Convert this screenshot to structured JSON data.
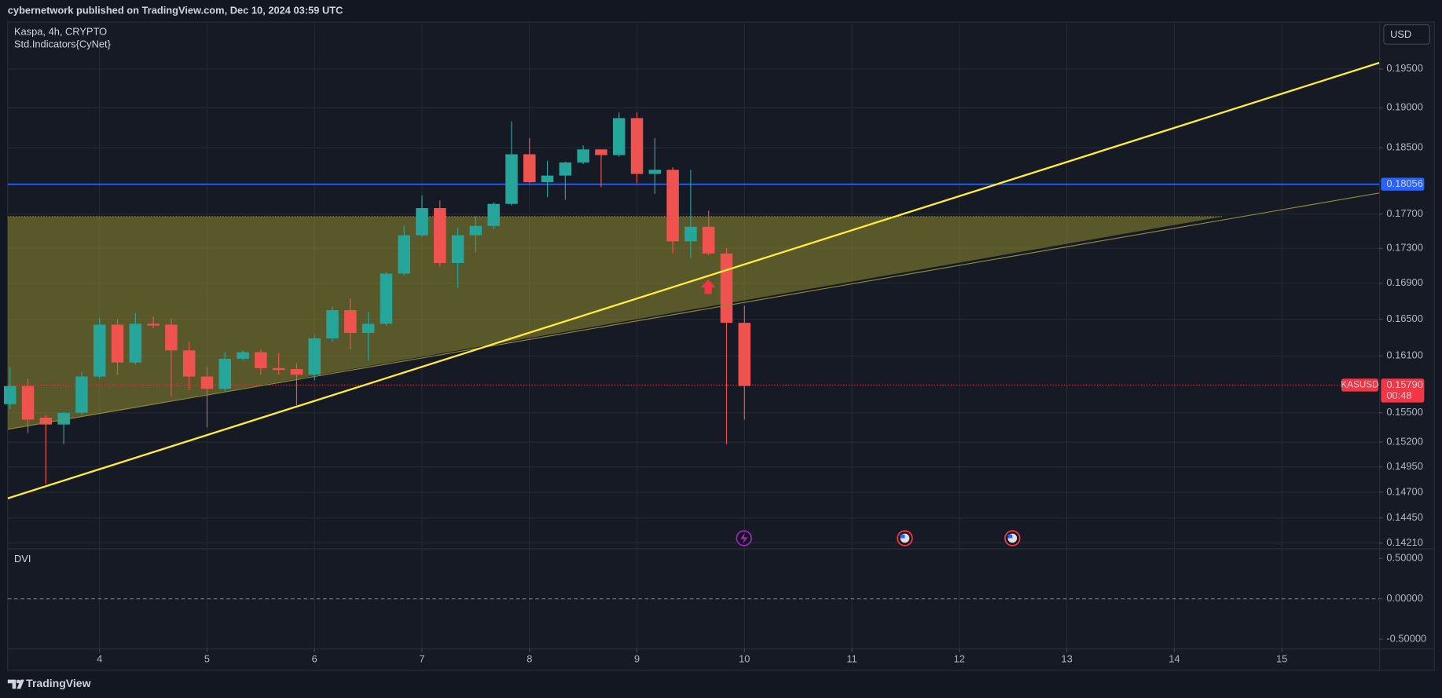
{
  "header": "cybernetwork published on TradingView.com, Dec 10, 2024 03:59 UTC",
  "currency": "USD",
  "footer": "TradingView",
  "chart_data": [
    {
      "type": "candlestick",
      "title": "Kaspa, 4h, CRYPTO",
      "subtitle": "Std.Indicators{CyNet}",
      "up_color": "#26a69a",
      "down_color": "#ef5350",
      "log_scale": true,
      "grid": true,
      "xlim": [
        3.145,
        15.906
      ],
      "xticks": [
        4,
        5,
        6,
        7,
        8,
        9,
        10,
        11,
        12,
        13,
        14,
        15
      ],
      "ylim": [
        0.1416,
        0.2012
      ],
      "yticks": [
        {
          "value": 0.195,
          "label": "0.19500"
        },
        {
          "value": 0.19,
          "label": "0.19000"
        },
        {
          "value": 0.185,
          "label": "0.18500"
        },
        {
          "value": 0.177,
          "label": "0.17700"
        },
        {
          "value": 0.173,
          "label": "0.17300"
        },
        {
          "value": 0.169,
          "label": "0.16900"
        },
        {
          "value": 0.165,
          "label": "0.16500"
        },
        {
          "value": 0.161,
          "label": "0.16100"
        },
        {
          "value": 0.155,
          "label": "0.15500"
        },
        {
          "value": 0.152,
          "label": "0.15200"
        },
        {
          "value": 0.1495,
          "label": "0.14950"
        },
        {
          "value": 0.147,
          "label": "0.14700"
        },
        {
          "value": 0.1445,
          "label": "0.14450"
        },
        {
          "value": 0.1421,
          "label": "0.14210"
        }
      ],
      "x": [
        3.1667,
        3.3333,
        3.5,
        3.6667,
        3.8333,
        4,
        4.1667,
        4.3333,
        4.5,
        4.6667,
        4.8333,
        5,
        5.1667,
        5.3333,
        5.5,
        5.6667,
        5.8333,
        6,
        6.1667,
        6.3333,
        6.5,
        6.6667,
        6.8333,
        7,
        7.1667,
        7.3333,
        7.5,
        7.6667,
        7.8333,
        8,
        8.1667,
        8.3333,
        8.5,
        8.6667,
        8.8333,
        9,
        9.1667,
        9.3333,
        9.5,
        9.6667,
        9.8333,
        10
      ],
      "open": [
        0.1559,
        0.1578,
        0.1545,
        0.1538,
        0.155,
        0.1588,
        0.1644,
        0.1603,
        0.1645,
        0.1644,
        0.1616,
        0.1588,
        0.1575,
        0.1607,
        0.1614,
        0.1597,
        0.1596,
        0.159,
        0.1629,
        0.166,
        0.1635,
        0.1645,
        0.1701,
        0.1745,
        0.1777,
        0.1713,
        0.1745,
        0.1756,
        0.1782,
        0.1842,
        0.1808,
        0.1816,
        0.1832,
        0.1848,
        0.1841,
        0.1887,
        0.1818,
        0.1823,
        0.1738,
        0.1755,
        0.1724,
        0.1646
      ],
      "high": [
        0.1598,
        0.1586,
        0.1548,
        0.1551,
        0.1593,
        0.1651,
        0.165,
        0.1657,
        0.1653,
        0.1651,
        0.1625,
        0.1598,
        0.1614,
        0.1616,
        0.1617,
        0.1613,
        0.1602,
        0.1633,
        0.1664,
        0.1673,
        0.1658,
        0.1703,
        0.1756,
        0.1792,
        0.1786,
        0.1754,
        0.1767,
        0.1784,
        0.1883,
        0.1862,
        0.1834,
        0.1833,
        0.1853,
        0.1848,
        0.1894,
        0.1894,
        0.1862,
        0.1826,
        0.1823,
        0.1774,
        0.173,
        0.1665
      ],
      "low": [
        0.1554,
        0.1529,
        0.1478,
        0.1518,
        0.1548,
        0.1586,
        0.159,
        0.1601,
        0.164,
        0.1567,
        0.1574,
        0.1535,
        0.1572,
        0.1605,
        0.159,
        0.159,
        0.1558,
        0.1584,
        0.1625,
        0.1617,
        0.1605,
        0.1643,
        0.1699,
        0.1743,
        0.1709,
        0.1685,
        0.1725,
        0.1752,
        0.178,
        0.1807,
        0.179,
        0.1787,
        0.183,
        0.1802,
        0.1839,
        0.1807,
        0.1794,
        0.1724,
        0.1719,
        0.1722,
        0.1518,
        0.1543
      ],
      "close": [
        0.1578,
        0.1543,
        0.1538,
        0.155,
        0.1588,
        0.1644,
        0.1603,
        0.1645,
        0.1643,
        0.1616,
        0.1588,
        0.1575,
        0.1607,
        0.1614,
        0.1597,
        0.1595,
        0.159,
        0.1629,
        0.166,
        0.1635,
        0.1645,
        0.1701,
        0.1745,
        0.1777,
        0.1713,
        0.1745,
        0.1756,
        0.1782,
        0.1842,
        0.1808,
        0.1816,
        0.1832,
        0.1848,
        0.1841,
        0.1887,
        0.1818,
        0.1823,
        0.1738,
        0.1755,
        0.1724,
        0.1646,
        0.1578
      ],
      "hline": {
        "value": 0.18056,
        "color": "#2962ff"
      },
      "last_price": {
        "value": 0.1579,
        "label": "0.15790",
        "symbol": "KASUSD",
        "countdown": "00:48",
        "color": "#f23645"
      },
      "zone": {
        "color": "#9b9632",
        "points": [
          [
            3.145,
            0.1767
          ],
          [
            14.45,
            0.1767
          ],
          [
            3.145,
            0.1533
          ]
        ]
      },
      "trendlines": [
        {
          "color": "#8f8b3a",
          "width": 1,
          "points": [
            [
              3.145,
              0.1533
            ],
            [
              15.906,
              0.1795
            ]
          ]
        },
        {
          "color": "#ffeb3b",
          "width": 2,
          "points": [
            [
              3.145,
              0.1464
            ],
            [
              15.906,
              0.1958
            ]
          ]
        }
      ]
    },
    {
      "type": "indicator",
      "title": "DVI",
      "ylim": [
        -0.614,
        0.614
      ],
      "yticks": [
        {
          "value": 0.5,
          "label": "0.50000"
        },
        {
          "value": 0,
          "label": "0.00000"
        },
        {
          "value": -0.5,
          "label": "-0.50000"
        }
      ],
      "reference_line": 0
    }
  ]
}
